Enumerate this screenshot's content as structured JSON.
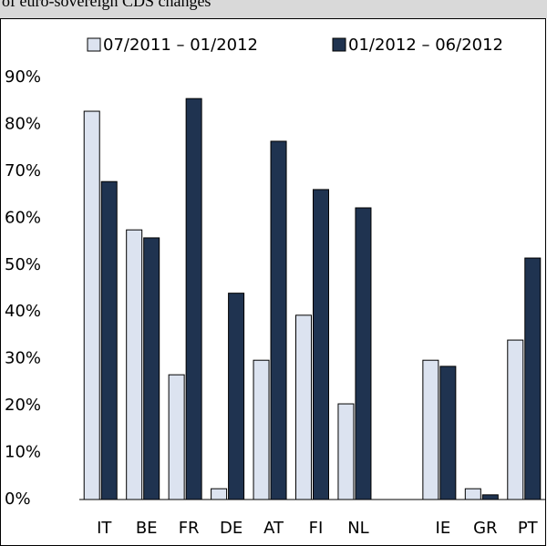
{
  "header": {
    "text": "of euro-sovereign CDS changes"
  },
  "chart_data": {
    "type": "bar",
    "categories": [
      "IT",
      "BE",
      "FR",
      "DE",
      "AT",
      "FI",
      "NL",
      null,
      "IE",
      "GR",
      "PT"
    ],
    "series": [
      {
        "name": "07/2011 – 01/2012",
        "color": "#dce3f0",
        "values": [
          82.8,
          57.5,
          26.6,
          2.3,
          29.7,
          39.3,
          20.4,
          null,
          29.7,
          2.3,
          34.0
        ]
      },
      {
        "name": "01/2012 – 06/2012",
        "color": "#1f3350",
        "values": [
          67.8,
          55.8,
          85.5,
          44.0,
          76.4,
          66.1,
          62.2,
          null,
          28.4,
          1.0,
          51.5
        ]
      }
    ],
    "ylim": [
      0,
      90
    ],
    "yticks": [
      {
        "value": 0,
        "label": "0%"
      },
      {
        "value": 10,
        "label": "10%"
      },
      {
        "value": 20,
        "label": "20%"
      },
      {
        "value": 30,
        "label": "30%"
      },
      {
        "value": 40,
        "label": "40%"
      },
      {
        "value": 50,
        "label": "50%"
      },
      {
        "value": 60,
        "label": "60%"
      },
      {
        "value": 70,
        "label": "70%"
      },
      {
        "value": 80,
        "label": "80%"
      },
      {
        "value": 90,
        "label": "90%"
      }
    ],
    "grid": false
  }
}
